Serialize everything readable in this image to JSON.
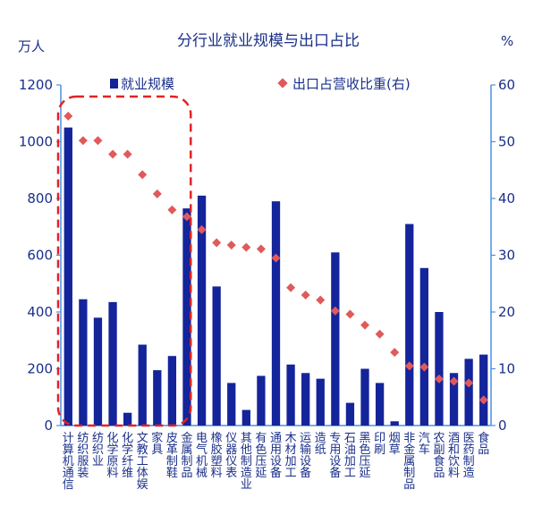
{
  "chart_data": {
    "type": "bar",
    "title": "分行业就业规模与出口占比",
    "y_left_unit": "万人",
    "y_right_unit": "%",
    "ylim_left": [
      0,
      1200
    ],
    "ylim_right": [
      0,
      60
    ],
    "yticks_left": [
      "0",
      "200",
      "400",
      "600",
      "800",
      "1000",
      "1200"
    ],
    "yticks_right": [
      "0",
      "10",
      "20",
      "30",
      "40",
      "50",
      "60"
    ],
    "grid": false,
    "legend_position": "top",
    "categories": [
      "计算机通信",
      "纺织服装",
      "纺织业",
      "化学原料",
      "化学纤维",
      "文教工体娱",
      "家具",
      "皮革制鞋",
      "金属制品",
      "电气机械",
      "橡胶塑料",
      "仪器仪表",
      "其他制造业",
      "有色压延",
      "通用设备",
      "木材加工",
      "运输设备",
      "造纸",
      "专用设备",
      "石油加工",
      "黑色压延",
      "印刷",
      "烟草",
      "非金属制品",
      "汽车",
      "农副食品",
      "酒和饮料",
      "医药制造",
      "食品"
    ],
    "series": [
      {
        "name": "就业规模",
        "type": "bar",
        "axis": "left",
        "color": "#14249a",
        "values": [
          1050,
          445,
          380,
          435,
          45,
          285,
          195,
          245,
          765,
          810,
          490,
          150,
          55,
          175,
          790,
          215,
          185,
          165,
          610,
          80,
          200,
          150,
          15,
          710,
          555,
          400,
          185,
          235,
          250
        ]
      },
      {
        "name": "出口占营收比重(右)",
        "type": "scatter",
        "axis": "right",
        "color": "#e05a5a",
        "values": [
          54.5,
          50.2,
          50.2,
          47.8,
          47.8,
          44.2,
          40.8,
          38.0,
          36.8,
          34.5,
          32.2,
          31.8,
          31.4,
          31.1,
          29.5,
          24.3,
          23.0,
          22.1,
          20.2,
          19.6,
          17.7,
          16.1,
          12.9,
          10.5,
          10.3,
          8.2,
          7.8,
          7.5,
          4.5
        ]
      }
    ],
    "annotation": {
      "type": "dashed-rounded-box",
      "color": "#e02424",
      "first_category": 0,
      "last_category": 8
    }
  }
}
